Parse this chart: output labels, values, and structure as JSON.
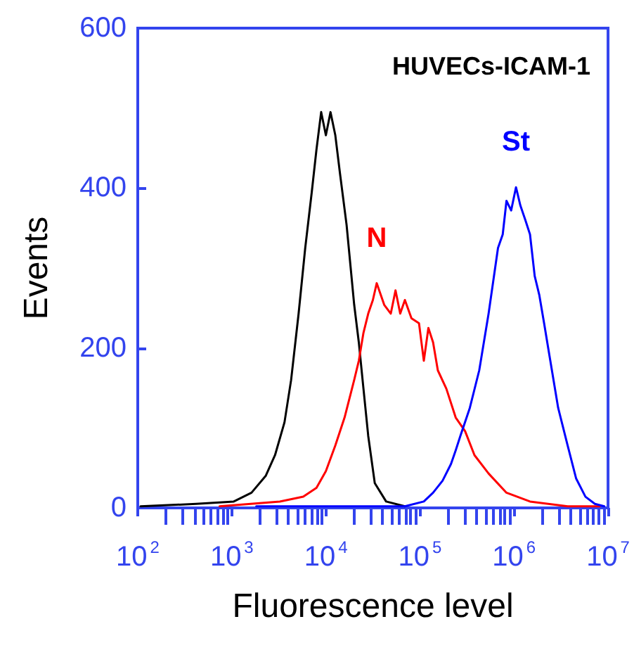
{
  "chart_data": {
    "type": "line",
    "xlabel": "Fluorescence level",
    "ylabel": "Events",
    "annotations": [
      "HUVECs-ICAM-1"
    ],
    "log": "x",
    "xlim": [
      100,
      10000000
    ],
    "xticks": [
      {
        "value": 100,
        "label": "10$^{2}$"
      },
      {
        "value": 1000,
        "label": "10$^{3}$"
      },
      {
        "value": 10000,
        "label": "10$^{4}$"
      },
      {
        "value": 100000,
        "label": "10$^{5}$"
      },
      {
        "value": 1000000,
        "label": "10$^{6}$"
      },
      {
        "value": 10000000,
        "label": "10$^{7}$"
      }
    ],
    "ylim": [
      0,
      600
    ],
    "yticks": [
      0,
      200,
      400,
      600
    ],
    "grid": false,
    "legend": false,
    "marker": "none",
    "line_style": "solid",
    "series": [
      {
        "color": "#000000",
        "x": [
          107,
          417,
          1050,
          1620,
          2290,
          2880,
          3630,
          4270,
          5130,
          6030,
          7080,
          7940,
          8910,
          10000,
          11200,
          12600,
          14100,
          16600,
          20000,
          22400,
          25100,
          28200,
          33100,
          43700,
          69200
        ],
        "values": [
          2,
          5,
          8,
          19,
          40,
          66,
          107,
          160,
          243,
          325,
          395,
          448,
          495,
          466,
          495,
          466,
          419,
          354,
          254,
          207,
          149,
          90,
          31,
          8,
          2
        ]
      },
      {
        "name": "N",
        "color": "#ff0000",
        "x": [
          741,
          3240,
          5750,
          7940,
          10000,
          12600,
          15800,
          20000,
          22400,
          25100,
          28200,
          31600,
          34700,
          41700,
          49000,
          55000,
          61700,
          69200,
          81300,
          97700,
          110000,
          123000,
          138000,
          155000,
          191000,
          240000,
          302000,
          380000,
          537000,
          832000,
          1480000,
          3720000,
          8130000
        ],
        "values": [
          2,
          8,
          14,
          25,
          46,
          78,
          113,
          160,
          184,
          219,
          243,
          260,
          281,
          254,
          243,
          272,
          243,
          260,
          237,
          231,
          184,
          225,
          207,
          172,
          149,
          113,
          96,
          66,
          43,
          19,
          8,
          2,
          2
        ]
      },
      {
        "name": "St",
        "color": "#0000ff",
        "x": [
          1820,
          22400,
          69200,
          110000,
          138000,
          174000,
          214000,
          240000,
          269000,
          339000,
          427000,
          537000,
          676000,
          759000,
          832000,
          933000,
          1050000,
          1170000,
          1320000,
          1480000,
          1660000,
          1860000,
          2090000,
          2340000,
          2950000,
          3720000,
          4570000,
          5750000,
          7240000,
          9120000
        ],
        "values": [
          2,
          2,
          2,
          8,
          19,
          34,
          55,
          72,
          90,
          125,
          172,
          243,
          325,
          342,
          384,
          372,
          401,
          378,
          360,
          342,
          290,
          266,
          231,
          196,
          125,
          78,
          37,
          14,
          5,
          2
        ]
      }
    ]
  }
}
